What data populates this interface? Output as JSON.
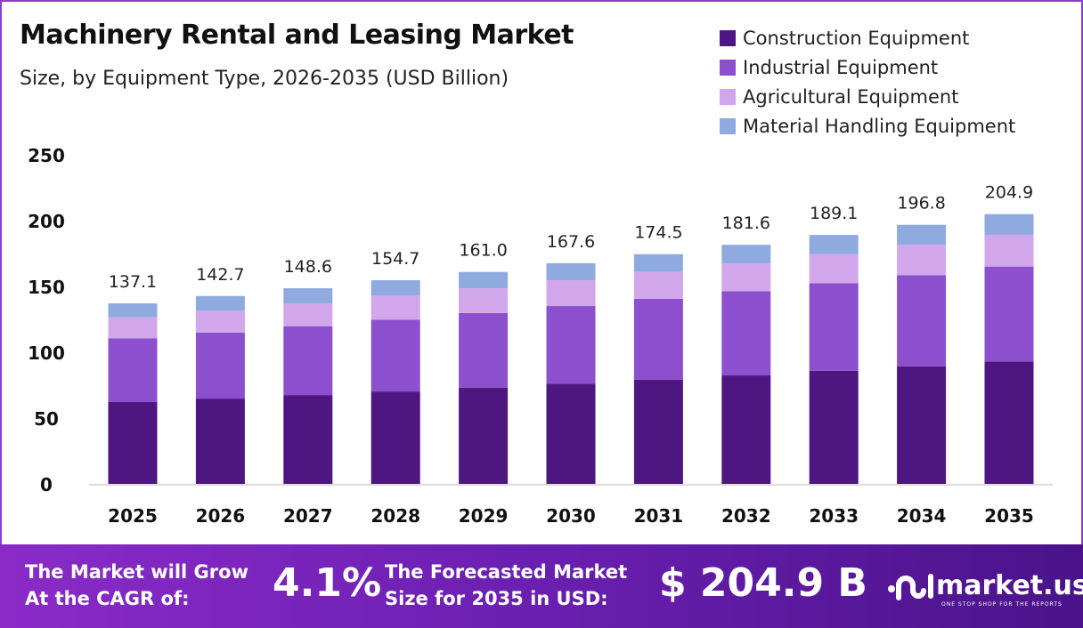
{
  "chart_data": {
    "type": "bar",
    "stacked": true,
    "title": "Machinery Rental and Leasing Market",
    "subtitle": "Size, by Equipment Type, 2026-2035 (USD Billion)",
    "categories": [
      "2025",
      "2026",
      "2027",
      "2028",
      "2029",
      "2030",
      "2031",
      "2032",
      "2033",
      "2034",
      "2035"
    ],
    "series": [
      {
        "name": "Construction Equipment",
        "color": "#4e1681",
        "values": [
          62.2,
          64.8,
          67.5,
          70.2,
          73.1,
          76.1,
          79.2,
          82.4,
          85.9,
          89.3,
          93.0
        ]
      },
      {
        "name": "Industrial Equipment",
        "color": "#8c4fcd",
        "values": [
          48.3,
          50.2,
          52.3,
          54.5,
          56.7,
          59.0,
          61.4,
          63.9,
          66.6,
          69.3,
          72.1
        ]
      },
      {
        "name": "Agricultural Equipment",
        "color": "#d2a6ea",
        "values": [
          16.0,
          16.7,
          17.4,
          18.1,
          18.8,
          19.6,
          20.4,
          21.2,
          22.1,
          23.0,
          24.0
        ]
      },
      {
        "name": "Material Handling Equipment",
        "color": "#8eaadf",
        "values": [
          10.6,
          11.0,
          11.4,
          11.9,
          12.4,
          12.9,
          13.5,
          14.1,
          14.5,
          15.2,
          15.8
        ]
      }
    ],
    "totals": [
      "137.1",
      "142.7",
      "148.6",
      "154.7",
      "161.0",
      "167.6",
      "174.5",
      "181.6",
      "189.1",
      "196.8",
      "204.9"
    ],
    "ylim": [
      0,
      250
    ],
    "yticks": [
      "0",
      "50",
      "100",
      "150",
      "200",
      "250"
    ],
    "grid": false,
    "legend": "top-right"
  },
  "footer": {
    "cagr_label_1": "The Market will Grow",
    "cagr_label_2": "At the CAGR of:",
    "cagr_value": "4.1%",
    "forecast_label_1": "The Forecasted Market",
    "forecast_label_2": "Size for 2035 in USD:",
    "forecast_value": "$ 204.9 B",
    "logo_text": "market.us",
    "logo_tagline": "ONE STOP SHOP FOR THE REPORTS"
  }
}
